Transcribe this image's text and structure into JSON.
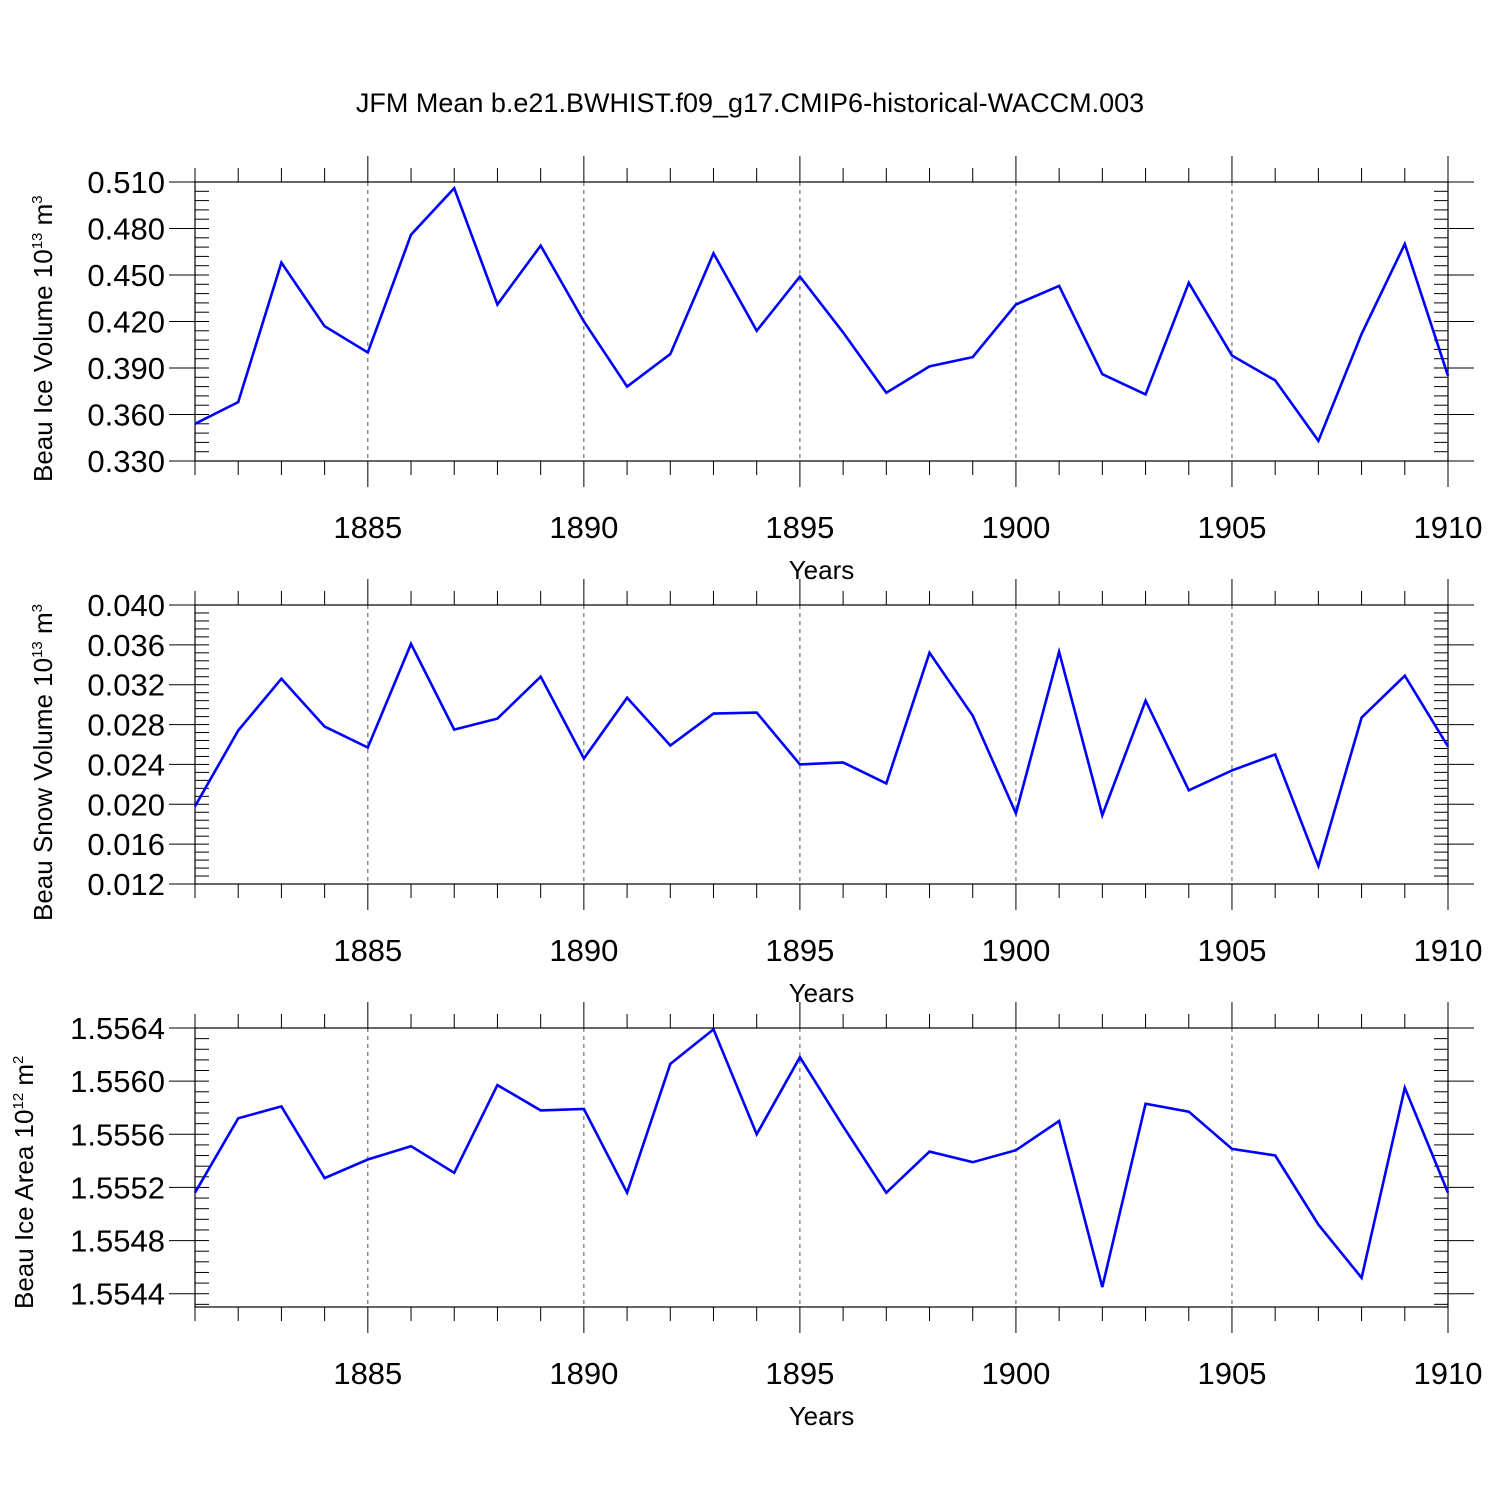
{
  "figure": {
    "title": "JFM Mean b.e21.BWHIST.f09_g17.CMIP6-historical-WACCM.003",
    "line_color": "#0000ff",
    "grid_style": "dashed vertical lines at labeled years"
  },
  "chart_data": [
    {
      "type": "line",
      "ylabel_prefix": "Beau Ice Volume 10",
      "ylabel_exp": "13",
      "ylabel_unit": " m",
      "ylabel_unit_exp": "3",
      "xlabel": "Years",
      "xlim": [
        1881,
        1910
      ],
      "ylim": [
        0.33,
        0.51
      ],
      "yticks": [
        "0.510",
        "0.480",
        "0.450",
        "0.420",
        "0.390",
        "0.360",
        "0.330"
      ],
      "xticks": [
        "1885",
        "1890",
        "1895",
        "1900",
        "1905",
        "1910"
      ],
      "grid": "vertical dashed at 1885, 1890, 1895, 1900, 1905",
      "series": [
        {
          "x": [
            1881,
            1882,
            1883,
            1884,
            1885,
            1886,
            1887,
            1888,
            1889,
            1890,
            1891,
            1892,
            1893,
            1894,
            1895,
            1896,
            1897,
            1898,
            1899,
            1900,
            1901,
            1902,
            1903,
            1904,
            1905,
            1906,
            1907,
            1908,
            1909,
            1910
          ],
          "values": [
            0.354,
            0.368,
            0.458,
            0.417,
            0.4,
            0.476,
            0.506,
            0.431,
            0.469,
            0.42,
            0.378,
            0.399,
            0.464,
            0.414,
            0.449,
            0.413,
            0.374,
            0.391,
            0.397,
            0.431,
            0.443,
            0.386,
            0.373,
            0.445,
            0.398,
            0.382,
            0.343,
            0.412,
            0.47,
            0.385
          ]
        }
      ]
    },
    {
      "type": "line",
      "ylabel_prefix": "Beau Snow Volume 10",
      "ylabel_exp": "13",
      "ylabel_unit": " m",
      "ylabel_unit_exp": "3",
      "xlabel": "Years",
      "xlim": [
        1881,
        1910
      ],
      "ylim": [
        0.012,
        0.04
      ],
      "yticks": [
        "0.040",
        "0.036",
        "0.032",
        "0.028",
        "0.024",
        "0.020",
        "0.016",
        "0.012"
      ],
      "xticks": [
        "1885",
        "1890",
        "1895",
        "1900",
        "1905",
        "1910"
      ],
      "grid": "vertical dashed at 1885, 1890, 1895, 1900, 1905",
      "series": [
        {
          "x": [
            1881,
            1882,
            1883,
            1884,
            1885,
            1886,
            1887,
            1888,
            1889,
            1890,
            1891,
            1892,
            1893,
            1894,
            1895,
            1896,
            1897,
            1898,
            1899,
            1900,
            1901,
            1902,
            1903,
            1904,
            1905,
            1906,
            1907,
            1908,
            1909,
            1910
          ],
          "values": [
            0.0198,
            0.0274,
            0.0326,
            0.0278,
            0.0257,
            0.0361,
            0.0275,
            0.0286,
            0.0328,
            0.0246,
            0.0307,
            0.0259,
            0.0291,
            0.0292,
            0.024,
            0.0242,
            0.0221,
            0.0352,
            0.0289,
            0.0191,
            0.0353,
            0.0189,
            0.0304,
            0.0214,
            0.0234,
            0.025,
            0.0138,
            0.0287,
            0.0329,
            0.0258
          ]
        }
      ]
    },
    {
      "type": "line",
      "ylabel_prefix": "Beau Ice Area 10",
      "ylabel_exp": "12",
      "ylabel_unit": " m",
      "ylabel_unit_exp": "2",
      "xlabel": "Years",
      "xlim": [
        1881,
        1910
      ],
      "ylim": [
        1.5543,
        1.5564
      ],
      "yticks": [
        "1.5564",
        "1.5560",
        "1.5556",
        "1.5552",
        "1.5548",
        "1.5544"
      ],
      "xticks": [
        "1885",
        "1890",
        "1895",
        "1900",
        "1905",
        "1910"
      ],
      "grid": "vertical dashed at 1885, 1890, 1895, 1900, 1905",
      "series": [
        {
          "x": [
            1881,
            1882,
            1883,
            1884,
            1885,
            1886,
            1887,
            1888,
            1889,
            1890,
            1891,
            1892,
            1893,
            1894,
            1895,
            1896,
            1897,
            1898,
            1899,
            1900,
            1901,
            1902,
            1903,
            1904,
            1905,
            1906,
            1907,
            1908,
            1909,
            1910
          ],
          "values": [
            1.55516,
            1.55572,
            1.55581,
            1.55527,
            1.55541,
            1.55551,
            1.55531,
            1.55597,
            1.55578,
            1.55579,
            1.55516,
            1.55613,
            1.55639,
            1.5556,
            1.55618,
            1.55566,
            1.55516,
            1.55547,
            1.55539,
            1.55548,
            1.5557,
            1.55445,
            1.55583,
            1.55577,
            1.55549,
            1.55544,
            1.55492,
            1.55452,
            1.55595,
            1.55516
          ]
        }
      ]
    }
  ]
}
